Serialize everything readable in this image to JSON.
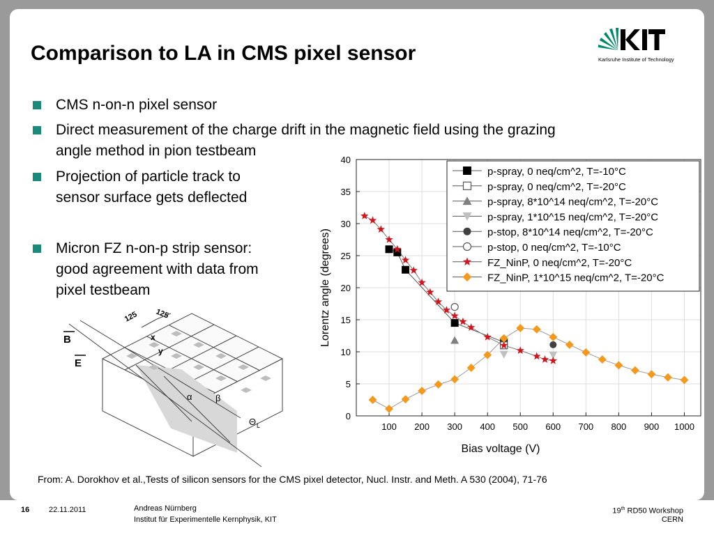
{
  "slide": {
    "title": "Comparison to LA in CMS pixel sensor",
    "logo_text": "KIT",
    "logo_subtitle": "Karlsruhe Institute of Technology",
    "bullets": [
      {
        "lines": [
          "CMS n-on-n pixel sensor"
        ]
      },
      {
        "lines": [
          "Direct measurement of the charge drift in the magnetic field using the grazing",
          "angle method in pion testbeam"
        ]
      },
      {
        "lines": [
          "Projection of particle track to",
          "sensor surface gets deflected"
        ]
      },
      {
        "lines": [
          "Micron FZ n-on-p strip sensor:",
          "good agreement with data from",
          "pixel testbeam"
        ]
      }
    ],
    "citation": "From: A. Dorokhov et al.,Tests of silicon sensors for the CMS pixel detector, Nucl. Instr. and Meth. A 530 (2004), 71-76"
  },
  "diagram": {
    "labels": {
      "dim1": "125",
      "dim2": "125",
      "x": "x",
      "y": "y",
      "B": "B",
      "E": "E",
      "alpha": "α",
      "beta": "β",
      "theta": "Θ",
      "theta_sub": "L"
    }
  },
  "footer": {
    "page": "16",
    "date": "22.11.2011",
    "author": "Andreas Nürnberg",
    "institute": "Institut für Experimentelle Kernphysik, KIT",
    "workshop_num": "19",
    "workshop_sup": "th",
    "workshop_rest": " RD50 Workshop",
    "venue": "CERN"
  },
  "colors": {
    "accent": "#1a8a7a",
    "kit_green": "#00876c",
    "orange": "#f39a1e",
    "red": "#d0161c"
  },
  "chart_data": {
    "type": "scatter",
    "xlabel": "Bias voltage (V)",
    "ylabel": "Lorentz angle (degrees)",
    "xlim": [
      0,
      1050
    ],
    "ylim": [
      0,
      40
    ],
    "xticks": [
      100,
      200,
      300,
      400,
      500,
      600,
      700,
      800,
      900,
      1000
    ],
    "yticks": [
      0,
      5,
      10,
      15,
      20,
      25,
      30,
      35,
      40
    ],
    "grid": true,
    "legend_position": "top-right",
    "series": [
      {
        "name": "p-spray, 0 neq/cm^2, T=-10°C",
        "marker": "square-filled",
        "color": "#000000",
        "line": true,
        "x": [
          100,
          125,
          150,
          300,
          450
        ],
        "y": [
          26,
          25.5,
          22.8,
          14.5,
          11.5
        ]
      },
      {
        "name": "p-spray, 0 neq/cm^2, T=-20°C",
        "marker": "square-open",
        "color": "#555555",
        "line": false,
        "x": [
          450
        ],
        "y": [
          11.0
        ]
      },
      {
        "name": "p-spray, 8*10^14 neq/cm^2, T=-20°C",
        "marker": "triangle-up",
        "color": "#808080",
        "line": false,
        "x": [
          300
        ],
        "y": [
          11.8
        ]
      },
      {
        "name": "p-spray, 1*10^15 neq/cm^2, T=-20°C",
        "marker": "triangle-down",
        "color": "#c0c0c0",
        "line": false,
        "x": [
          450,
          600
        ],
        "y": [
          9.6,
          9.5
        ]
      },
      {
        "name": "p-stop, 8*10^14 neq/cm^2, T=-20°C",
        "marker": "circle-filled",
        "color": "#404040",
        "line": false,
        "x": [
          450,
          600
        ],
        "y": [
          12.0,
          11.1
        ]
      },
      {
        "name": "p-stop, 0 neq/cm^2, T=-10°C",
        "marker": "circle-open",
        "color": "#555555",
        "line": false,
        "x": [
          300
        ],
        "y": [
          17
        ]
      },
      {
        "name": "FZ_NinP, 0 neq/cm^2, T=-20°C",
        "marker": "star",
        "color": "#d0161c",
        "line": true,
        "x": [
          25,
          50,
          75,
          100,
          125,
          150,
          175,
          200,
          225,
          250,
          275,
          300,
          325,
          350,
          400,
          450,
          500,
          550,
          575,
          600
        ],
        "y": [
          31.2,
          30.5,
          29.1,
          27.5,
          26,
          24.3,
          22.7,
          20.8,
          19.3,
          17.8,
          16.5,
          15.6,
          14.7,
          13.8,
          12.3,
          11.0,
          10.2,
          9.3,
          8.8,
          8.6
        ]
      },
      {
        "name": "FZ_NinP, 1*10^15 neq/cm^2, T=-20°C",
        "marker": "diamond",
        "color": "#f39a1e",
        "line": true,
        "x": [
          50,
          100,
          150,
          200,
          250,
          300,
          350,
          400,
          450,
          500,
          550,
          600,
          650,
          700,
          750,
          800,
          850,
          900,
          950,
          1000
        ],
        "y": [
          2.5,
          1.1,
          2.6,
          3.9,
          4.9,
          5.7,
          7.5,
          9.5,
          12.1,
          13.7,
          13.5,
          12.3,
          11.1,
          9.9,
          8.8,
          7.9,
          7.1,
          6.5,
          6.0,
          5.6
        ]
      }
    ]
  }
}
